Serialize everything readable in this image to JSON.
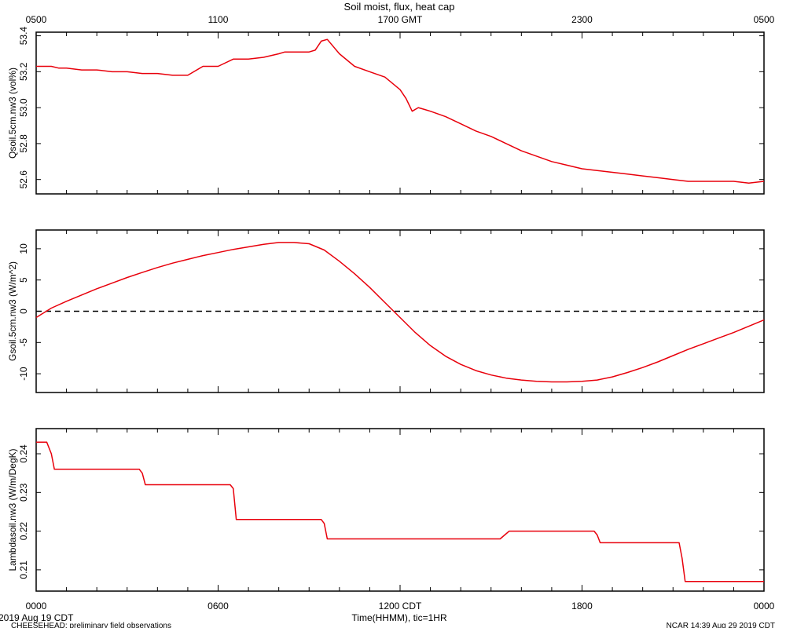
{
  "chart_data": {
    "type": "line",
    "title": "Soil moist, flux, heat cap",
    "xlabel": "Time(HHMM), tic=1HR",
    "date_label": "2019 Aug 19 CDT",
    "footer_left": "CHEESEHEAD: preliminary field observations",
    "footer_right": "NCAR 14:39 Aug 29 2019 CDT",
    "top_axis": {
      "ticks": [
        "0500",
        "1100",
        "1700 GMT",
        "2300",
        "0500"
      ]
    },
    "bottom_axis": {
      "ticks": [
        "0000",
        "0600",
        "1200 CDT",
        "1800",
        "0000"
      ]
    },
    "color": "#e8000b",
    "panels": [
      {
        "ylabel": "Qsoil.5cm.nw3 (vol%)",
        "ylim": [
          52.52,
          53.42
        ],
        "yticks": [
          "52.6",
          "52.8",
          "53.0",
          "53.2",
          "53.4"
        ],
        "zero_line": false,
        "series": {
          "x": [
            0,
            0.5,
            0.75,
            1,
            1.5,
            2,
            2.5,
            3,
            3.5,
            4,
            4.5,
            5,
            5.5,
            6,
            6.5,
            7,
            7.5,
            8,
            8.2,
            8.4,
            8.6,
            8.8,
            9,
            9.2,
            9.4,
            9.6,
            10,
            10.5,
            11,
            11.5,
            12,
            12.2,
            12.4,
            12.6,
            12.8,
            13,
            13.5,
            14,
            14.5,
            15,
            15.5,
            16,
            16.5,
            17,
            17.5,
            18,
            18.5,
            19,
            19.5,
            20,
            20.5,
            21,
            21.5,
            22,
            22.5,
            23,
            23.5,
            24
          ],
          "y": [
            53.23,
            53.23,
            53.22,
            53.22,
            53.21,
            53.21,
            53.2,
            53.2,
            53.19,
            53.19,
            53.18,
            53.18,
            53.23,
            53.23,
            53.27,
            53.27,
            53.28,
            53.3,
            53.31,
            53.31,
            53.31,
            53.31,
            53.31,
            53.32,
            53.37,
            53.38,
            53.3,
            53.23,
            53.2,
            53.17,
            53.1,
            53.05,
            52.98,
            53.0,
            52.99,
            52.98,
            52.95,
            52.91,
            52.87,
            52.84,
            52.8,
            52.76,
            52.73,
            52.7,
            52.68,
            52.66,
            52.65,
            52.64,
            52.63,
            52.62,
            52.61,
            52.6,
            52.59,
            52.59,
            52.59,
            52.59,
            52.58,
            52.59
          ]
        }
      },
      {
        "ylabel": "Gsoil.5cm.nw3 (W/m^2)",
        "ylim": [
          -13,
          13
        ],
        "yticks": [
          "-10",
          "-5",
          "0",
          "5",
          "10"
        ],
        "zero_line": true,
        "series": {
          "x": [
            0,
            0.5,
            1,
            1.5,
            2,
            2.5,
            3,
            3.5,
            4,
            4.5,
            5,
            5.5,
            6,
            6.5,
            7,
            7.5,
            8,
            8.5,
            9,
            9.5,
            10,
            10.5,
            11,
            11.5,
            12,
            12.5,
            13,
            13.5,
            14,
            14.5,
            15,
            15.5,
            16,
            16.5,
            17,
            17.5,
            18,
            18.5,
            19,
            19.5,
            20,
            20.5,
            21,
            21.5,
            22,
            22.5,
            23,
            23.5,
            24
          ],
          "y": [
            -1,
            0.5,
            1.6,
            2.6,
            3.6,
            4.5,
            5.4,
            6.2,
            7,
            7.7,
            8.3,
            8.9,
            9.4,
            9.9,
            10.3,
            10.7,
            11,
            11,
            10.8,
            9.8,
            8,
            6,
            3.8,
            1.4,
            -1,
            -3.4,
            -5.5,
            -7.2,
            -8.5,
            -9.5,
            -10.2,
            -10.7,
            -11,
            -11.2,
            -11.3,
            -11.3,
            -11.2,
            -11,
            -10.5,
            -9.8,
            -9,
            -8.1,
            -7.1,
            -6.1,
            -5.2,
            -4.3,
            -3.4,
            -2.4,
            -1.4
          ]
        }
      },
      {
        "ylabel": "Lambdasoil.nw3 (W/m/DegK)",
        "ylim": [
          0.2045,
          0.2465
        ],
        "yticks": [
          "0.21",
          "0.22",
          "0.23",
          "0.24"
        ],
        "zero_line": false,
        "series": {
          "x": [
            0,
            0.35,
            0.5,
            0.6,
            3.4,
            3.5,
            3.6,
            6.4,
            6.5,
            6.6,
            9.4,
            9.5,
            9.6,
            15.3,
            15.45,
            15.6,
            18.4,
            18.5,
            18.6,
            21.2,
            21.3,
            21.4,
            24
          ],
          "y": [
            0.243,
            0.243,
            0.24,
            0.236,
            0.236,
            0.235,
            0.232,
            0.232,
            0.231,
            0.223,
            0.223,
            0.222,
            0.218,
            0.218,
            0.219,
            0.22,
            0.22,
            0.219,
            0.217,
            0.217,
            0.213,
            0.207,
            0.207
          ]
        }
      }
    ]
  }
}
